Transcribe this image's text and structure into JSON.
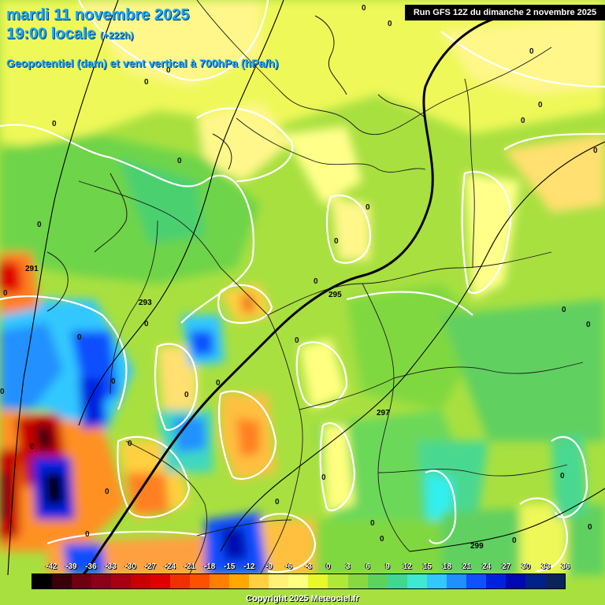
{
  "header": {
    "date_line": "mardi 11 novembre 2025",
    "time_line": "19:00 locale",
    "lead_time": "(+222h)",
    "parameter": "Geopotentiel (dam) et vent vertical à 700hPa (hPa/h)",
    "run_info": "Run GFS 12Z du dimanche 2 novembre 2025"
  },
  "map": {
    "zero_contour_label": "0",
    "geopotential_labels": [
      "291",
      "293",
      "295",
      "297",
      "299"
    ]
  },
  "legend": {
    "unit": "hPa/h",
    "values": [
      "-42",
      "-39",
      "-36",
      "-33",
      "-30",
      "-27",
      "-24",
      "-21",
      "-18",
      "-15",
      "-12",
      "-9",
      "-6",
      "-3",
      "0",
      "3",
      "6",
      "9",
      "12",
      "15",
      "18",
      "21",
      "24",
      "27",
      "30",
      "33",
      "36"
    ],
    "colors": [
      "#000000",
      "#3a0008",
      "#6e0010",
      "#8c0018",
      "#a80010",
      "#c80000",
      "#e00000",
      "#f03000",
      "#ff5000",
      "#ff8000",
      "#ffa800",
      "#ffd040",
      "#fff078",
      "#ffff80",
      "#e8f828",
      "#b0e838",
      "#88d840",
      "#5cd45c",
      "#40d890",
      "#40e8d0",
      "#30c8ff",
      "#2090ff",
      "#1050ff",
      "#0020e0",
      "#0008b0",
      "#00208a",
      "#0a2458"
    ]
  },
  "footer": {
    "copyright": "Copyright 2025 Meteociel.fr"
  }
}
